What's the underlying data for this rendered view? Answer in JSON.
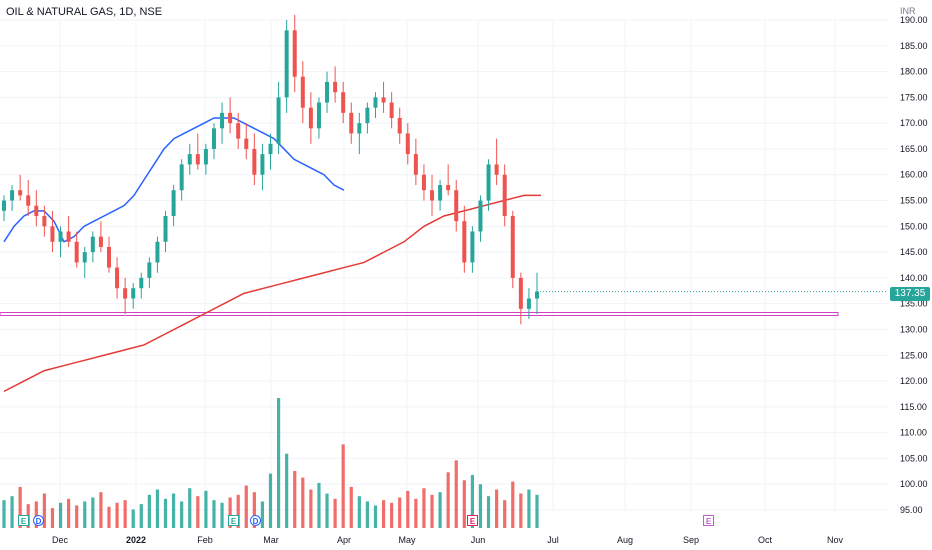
{
  "header": {
    "title": "OIL & NATURAL GAS, 1D, NSE",
    "currency": "INR"
  },
  "last_price": {
    "label": "137.35",
    "value": 137.35,
    "color": "#26a69a"
  },
  "colors": {
    "up": "#26a69a",
    "down": "#ef5350",
    "ma50": "#2962ff",
    "ma200": "#e53935",
    "support": "#d042c8",
    "grid": "#f0f3fa",
    "axis_text": "#131722",
    "event_e": "#e91e63",
    "event_d": "#2962ff",
    "event_future": "#c060d0"
  },
  "icons": {
    "earnings": "E",
    "dividend": "D"
  },
  "chart_data": {
    "type": "candlestick",
    "title": "OIL & NATURAL GAS, 1D, NSE",
    "y_axis": {
      "ticks": [
        95,
        100,
        105,
        110,
        115,
        120,
        125,
        130,
        135,
        140,
        145,
        150,
        155,
        160,
        165,
        170,
        175,
        180,
        185,
        190
      ],
      "unit": "INR"
    },
    "x_axis": {
      "ticks": [
        "Dec",
        "2022",
        "Feb",
        "Mar",
        "Apr",
        "May",
        "Jun",
        "Jul",
        "Aug",
        "Sep",
        "Oct",
        "Nov"
      ]
    },
    "support_level": 133,
    "ma_fast": [
      [
        0,
        147
      ],
      [
        10,
        150
      ],
      [
        20,
        152
      ],
      [
        30,
        153
      ],
      [
        40,
        153
      ],
      [
        50,
        151
      ],
      [
        55,
        149
      ],
      [
        60,
        147
      ],
      [
        70,
        148
      ],
      [
        80,
        150
      ],
      [
        90,
        151
      ],
      [
        100,
        152
      ],
      [
        110,
        153
      ],
      [
        120,
        154
      ],
      [
        130,
        156
      ],
      [
        140,
        159
      ],
      [
        150,
        162
      ],
      [
        160,
        165
      ],
      [
        170,
        167
      ],
      [
        180,
        168
      ],
      [
        190,
        169
      ],
      [
        200,
        170
      ],
      [
        210,
        171
      ],
      [
        220,
        171
      ],
      [
        230,
        171
      ],
      [
        240,
        170
      ],
      [
        250,
        169
      ],
      [
        260,
        168
      ],
      [
        270,
        167
      ],
      [
        280,
        165
      ],
      [
        290,
        163
      ],
      [
        300,
        162
      ],
      [
        310,
        161
      ],
      [
        320,
        160
      ],
      [
        330,
        158
      ],
      [
        340,
        157
      ]
    ],
    "ma_slow": [
      [
        0,
        118
      ],
      [
        20,
        120
      ],
      [
        40,
        122
      ],
      [
        60,
        123
      ],
      [
        80,
        124
      ],
      [
        100,
        125
      ],
      [
        120,
        126
      ],
      [
        140,
        127
      ],
      [
        160,
        129
      ],
      [
        180,
        131
      ],
      [
        200,
        133
      ],
      [
        220,
        135
      ],
      [
        240,
        137
      ],
      [
        260,
        138
      ],
      [
        280,
        139
      ],
      [
        300,
        140
      ],
      [
        320,
        141
      ],
      [
        340,
        142
      ],
      [
        360,
        143
      ],
      [
        380,
        145
      ],
      [
        400,
        147
      ],
      [
        420,
        150
      ],
      [
        440,
        152
      ],
      [
        460,
        153
      ],
      [
        480,
        154
      ],
      [
        500,
        155
      ],
      [
        520,
        156
      ],
      [
        537,
        156
      ]
    ],
    "candles": [
      {
        "o": 153,
        "h": 156,
        "l": 151,
        "c": 155
      },
      {
        "o": 155,
        "h": 158,
        "l": 153,
        "c": 157
      },
      {
        "o": 157,
        "h": 160,
        "l": 155,
        "c": 156
      },
      {
        "o": 156,
        "h": 159,
        "l": 152,
        "c": 154
      },
      {
        "o": 154,
        "h": 157,
        "l": 150,
        "c": 152
      },
      {
        "o": 152,
        "h": 154,
        "l": 148,
        "c": 150
      },
      {
        "o": 150,
        "h": 153,
        "l": 145,
        "c": 147
      },
      {
        "o": 147,
        "h": 150,
        "l": 144,
        "c": 149
      },
      {
        "o": 149,
        "h": 152,
        "l": 146,
        "c": 147
      },
      {
        "o": 147,
        "h": 149,
        "l": 142,
        "c": 143
      },
      {
        "o": 143,
        "h": 146,
        "l": 140,
        "c": 145
      },
      {
        "o": 145,
        "h": 149,
        "l": 143,
        "c": 148
      },
      {
        "o": 148,
        "h": 151,
        "l": 145,
        "c": 146
      },
      {
        "o": 146,
        "h": 148,
        "l": 141,
        "c": 142
      },
      {
        "o": 142,
        "h": 144,
        "l": 136,
        "c": 138
      },
      {
        "o": 138,
        "h": 140,
        "l": 133,
        "c": 136
      },
      {
        "o": 136,
        "h": 139,
        "l": 134,
        "c": 138
      },
      {
        "o": 138,
        "h": 141,
        "l": 136,
        "c": 140
      },
      {
        "o": 140,
        "h": 144,
        "l": 138,
        "c": 143
      },
      {
        "o": 143,
        "h": 148,
        "l": 141,
        "c": 147
      },
      {
        "o": 147,
        "h": 153,
        "l": 145,
        "c": 152
      },
      {
        "o": 152,
        "h": 158,
        "l": 150,
        "c": 157
      },
      {
        "o": 157,
        "h": 163,
        "l": 155,
        "c": 162
      },
      {
        "o": 162,
        "h": 166,
        "l": 160,
        "c": 164
      },
      {
        "o": 164,
        "h": 168,
        "l": 161,
        "c": 162
      },
      {
        "o": 162,
        "h": 166,
        "l": 160,
        "c": 165
      },
      {
        "o": 165,
        "h": 170,
        "l": 163,
        "c": 169
      },
      {
        "o": 169,
        "h": 174,
        "l": 166,
        "c": 172
      },
      {
        "o": 172,
        "h": 175,
        "l": 168,
        "c": 170
      },
      {
        "o": 170,
        "h": 172,
        "l": 165,
        "c": 167
      },
      {
        "o": 167,
        "h": 170,
        "l": 163,
        "c": 165
      },
      {
        "o": 165,
        "h": 168,
        "l": 158,
        "c": 160
      },
      {
        "o": 160,
        "h": 166,
        "l": 157,
        "c": 164
      },
      {
        "o": 164,
        "h": 168,
        "l": 161,
        "c": 166
      },
      {
        "o": 166,
        "h": 178,
        "l": 164,
        "c": 175
      },
      {
        "o": 175,
        "h": 190,
        "l": 172,
        "c": 188
      },
      {
        "o": 188,
        "h": 191,
        "l": 176,
        "c": 179
      },
      {
        "o": 179,
        "h": 182,
        "l": 170,
        "c": 173
      },
      {
        "o": 173,
        "h": 176,
        "l": 166,
        "c": 169
      },
      {
        "o": 169,
        "h": 175,
        "l": 167,
        "c": 174
      },
      {
        "o": 174,
        "h": 180,
        "l": 172,
        "c": 178
      },
      {
        "o": 178,
        "h": 181,
        "l": 174,
        "c": 176
      },
      {
        "o": 176,
        "h": 178,
        "l": 170,
        "c": 172
      },
      {
        "o": 172,
        "h": 174,
        "l": 166,
        "c": 168
      },
      {
        "o": 168,
        "h": 172,
        "l": 164,
        "c": 170
      },
      {
        "o": 170,
        "h": 174,
        "l": 168,
        "c": 173
      },
      {
        "o": 173,
        "h": 176,
        "l": 171,
        "c": 175
      },
      {
        "o": 175,
        "h": 178,
        "l": 172,
        "c": 174
      },
      {
        "o": 174,
        "h": 176,
        "l": 169,
        "c": 171
      },
      {
        "o": 171,
        "h": 173,
        "l": 166,
        "c": 168
      },
      {
        "o": 168,
        "h": 170,
        "l": 162,
        "c": 164
      },
      {
        "o": 164,
        "h": 167,
        "l": 158,
        "c": 160
      },
      {
        "o": 160,
        "h": 162,
        "l": 155,
        "c": 157
      },
      {
        "o": 157,
        "h": 160,
        "l": 152,
        "c": 155
      },
      {
        "o": 155,
        "h": 159,
        "l": 153,
        "c": 158
      },
      {
        "o": 158,
        "h": 162,
        "l": 156,
        "c": 157
      },
      {
        "o": 157,
        "h": 159,
        "l": 149,
        "c": 151
      },
      {
        "o": 151,
        "h": 154,
        "l": 141,
        "c": 143
      },
      {
        "o": 143,
        "h": 150,
        "l": 141,
        "c": 149
      },
      {
        "o": 149,
        "h": 156,
        "l": 147,
        "c": 155
      },
      {
        "o": 155,
        "h": 163,
        "l": 153,
        "c": 162
      },
      {
        "o": 162,
        "h": 167,
        "l": 158,
        "c": 160
      },
      {
        "o": 160,
        "h": 162,
        "l": 150,
        "c": 152
      },
      {
        "o": 152,
        "h": 153,
        "l": 138,
        "c": 140
      },
      {
        "o": 140,
        "h": 141,
        "l": 131,
        "c": 134
      },
      {
        "o": 134,
        "h": 138,
        "l": 132,
        "c": 136
      },
      {
        "o": 136,
        "h": 141,
        "l": 133,
        "c": 137.35
      }
    ],
    "volumes": [
      2.1,
      2.4,
      3.1,
      1.8,
      2.0,
      2.6,
      1.5,
      1.9,
      2.2,
      1.7,
      2.0,
      2.3,
      2.7,
      1.6,
      1.9,
      2.1,
      1.4,
      1.8,
      2.5,
      2.9,
      2.2,
      2.6,
      2.0,
      3.0,
      2.4,
      2.8,
      2.1,
      1.9,
      2.3,
      2.5,
      3.2,
      2.7,
      2.0,
      4.1,
      9.8,
      5.6,
      4.3,
      3.8,
      2.9,
      3.4,
      2.6,
      2.2,
      6.3,
      3.1,
      2.4,
      2.0,
      1.7,
      2.1,
      1.9,
      2.3,
      2.8,
      2.2,
      3.0,
      2.5,
      2.7,
      4.2,
      5.1,
      3.6,
      4.0,
      3.3,
      2.4,
      2.9,
      2.1,
      3.5,
      2.6,
      2.9,
      2.5
    ]
  }
}
